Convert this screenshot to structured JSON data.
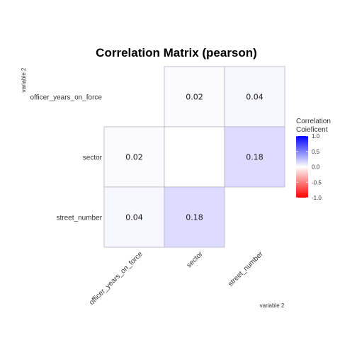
{
  "chart_data": {
    "type": "heatmap",
    "title": "Correlation Matrix (pearson)",
    "xlabel": "variable 2",
    "ylabel": "variable 2",
    "variables": [
      "officer_years_on_force",
      "sector",
      "street_number"
    ],
    "x_categories": [
      "officer_years_on_force",
      "sector",
      "street_number"
    ],
    "y_categories": [
      "officer_years_on_force",
      "sector",
      "street_number"
    ],
    "cells": [
      {
        "row": "officer_years_on_force",
        "col": "sector",
        "value": 0.02,
        "label": "0.02"
      },
      {
        "row": "officer_years_on_force",
        "col": "street_number",
        "value": 0.04,
        "label": "0.04"
      },
      {
        "row": "sector",
        "col": "officer_years_on_force",
        "value": 0.02,
        "label": "0.02"
      },
      {
        "row": "sector",
        "col": "sector",
        "value": 0.0,
        "label": ""
      },
      {
        "row": "sector",
        "col": "street_number",
        "value": 0.18,
        "label": "0.18"
      },
      {
        "row": "street_number",
        "col": "officer_years_on_force",
        "value": 0.04,
        "label": "0.04"
      },
      {
        "row": "street_number",
        "col": "sector",
        "value": 0.18,
        "label": "0.18"
      }
    ],
    "legend": {
      "title_line1": "Correlation",
      "title_line2": "Coieficent",
      "ticks": [
        "1.0",
        "0.5",
        "0.0",
        "-0.5",
        "-1.0"
      ],
      "tick_values": [
        1.0,
        0.5,
        0.0,
        -0.5,
        -1.0
      ],
      "range": [
        -1.0,
        1.0
      ],
      "placement": "right",
      "colors": {
        "low": "#ff0000",
        "mid": "#ffffff",
        "high": "#0000ff"
      }
    }
  }
}
